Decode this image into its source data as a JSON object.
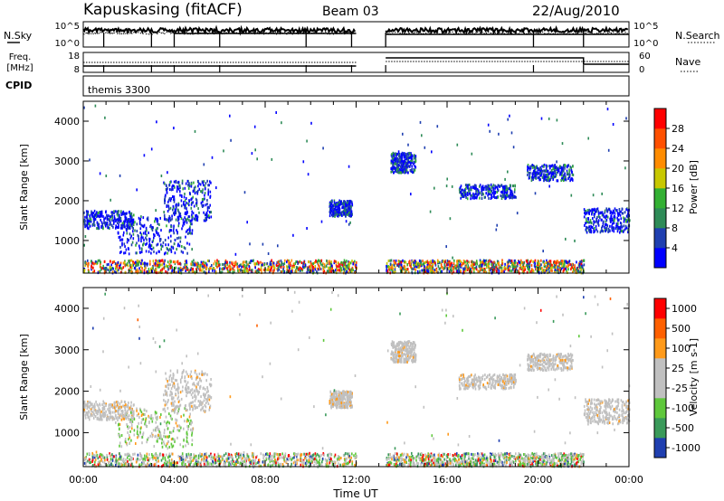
{
  "header": {
    "station": "Kapuskasing (fitACF)",
    "beam": "Beam 03",
    "date": "22/Aug/2010"
  },
  "side_labels": {
    "nsky": "N.Sky",
    "freq_top": "Freq.",
    "freq_unit": "[MHz]",
    "cpid": "CPID",
    "nsearch": "N.Search",
    "nave": "Nave",
    "cpid_value": "themis 3300"
  },
  "chart_data": [
    {
      "type": "line",
      "panel": "noise",
      "left_ticks": [
        "10^5",
        "10^0"
      ],
      "right_ticks": [
        "10^5",
        "10^0"
      ],
      "series": [
        {
          "name": "N.Sky"
        },
        {
          "name": "N.Search"
        }
      ],
      "gap_ut": [
        12.0,
        13.3
      ]
    },
    {
      "type": "line",
      "panel": "frequency",
      "left_ticks": [
        "18",
        "8"
      ],
      "right_ticks": [
        "60",
        "0"
      ],
      "series": [
        {
          "name": "Freq."
        },
        {
          "name": "Nave"
        }
      ],
      "gap_ut": [
        12.0,
        13.3
      ]
    },
    {
      "type": "heatmap",
      "panel": "power",
      "xlabel": "",
      "ylabel": "Slant Range [km]",
      "xlim": [
        0,
        24
      ],
      "ylim": [
        180,
        4500
      ],
      "yticks": [
        1000,
        2000,
        3000,
        4000
      ],
      "colorbar": {
        "label": "Power [dB]",
        "ticks": [
          "4",
          "8",
          "12",
          "16",
          "20",
          "24",
          "28"
        ],
        "colors": [
          "#0000ff",
          "#1f3fb0",
          "#2e8b57",
          "#33b033",
          "#c8c800",
          "#ff8c00",
          "#ff5000",
          "#ff0000"
        ]
      },
      "scatter_regions_ut_km": [
        {
          "x": [
            0.0,
            2.2
          ],
          "y": [
            1300,
            1750
          ]
        },
        {
          "x": [
            1.5,
            4.8
          ],
          "y": [
            650,
            1600
          ]
        },
        {
          "x": [
            3.5,
            5.6
          ],
          "y": [
            1500,
            2500
          ]
        },
        {
          "x": [
            10.8,
            11.8
          ],
          "y": [
            1600,
            2000
          ]
        },
        {
          "x": [
            13.5,
            14.6
          ],
          "y": [
            2700,
            3200
          ]
        },
        {
          "x": [
            16.5,
            19.0
          ],
          "y": [
            2050,
            2400
          ]
        },
        {
          "x": [
            19.5,
            21.5
          ],
          "y": [
            2500,
            2900
          ]
        },
        {
          "x": [
            22.0,
            24.0
          ],
          "y": [
            1200,
            1800
          ]
        },
        {
          "x": [
            0.0,
            12.0
          ],
          "y": [
            180,
            500
          ]
        },
        {
          "x": [
            13.3,
            22.0
          ],
          "y": [
            180,
            500
          ]
        }
      ]
    },
    {
      "type": "heatmap",
      "panel": "velocity",
      "xlabel": "Time UT",
      "ylabel": "Slant Range [km]",
      "xlim": [
        0,
        24
      ],
      "ylim": [
        180,
        4500
      ],
      "xticks": [
        "00:00",
        "04:00",
        "08:00",
        "12:00",
        "16:00",
        "20:00",
        "00:00"
      ],
      "yticks": [
        1000,
        2000,
        3000,
        4000
      ],
      "colorbar": {
        "label": "Velocity [m s-1]",
        "ticks": [
          "1000",
          "500",
          "100",
          "25",
          "-25",
          "-100",
          "-500",
          "-1000"
        ],
        "colors": [
          "#1f3fb0",
          "#3a9a5a",
          "#5fc83c",
          "#c0c0c0",
          "#c0c0c0",
          "#ff9a1a",
          "#ff6000",
          "#ff0000"
        ]
      }
    }
  ]
}
